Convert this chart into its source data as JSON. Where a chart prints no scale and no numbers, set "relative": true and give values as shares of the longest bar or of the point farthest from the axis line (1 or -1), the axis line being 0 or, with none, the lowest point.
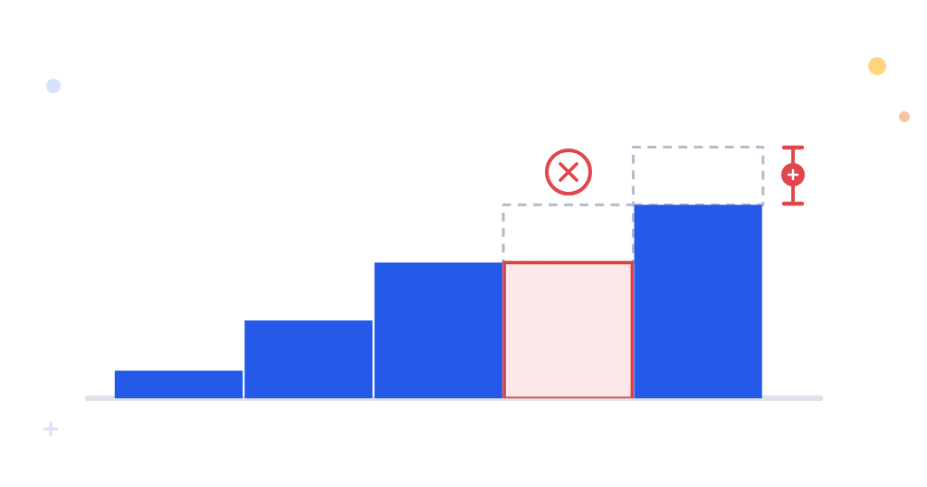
{
  "chart_data": {
    "type": "bar",
    "relative": true,
    "stacked": true,
    "categories": [
      null,
      null,
      null,
      null,
      null
    ],
    "series": [
      {
        "colors": [
          "#2559e8",
          "#2559e8",
          "#2559e8",
          "#fde9e9",
          "#2559e8"
        ],
        "values": [
          0.11,
          0.31,
          0.54,
          0.54,
          0.77
        ]
      },
      {
        "color": "#b3bccb",
        "line_style": "dashed",
        "values": [
          null,
          null,
          null,
          0.23,
          0.23
        ]
      }
    ]
  }
}
